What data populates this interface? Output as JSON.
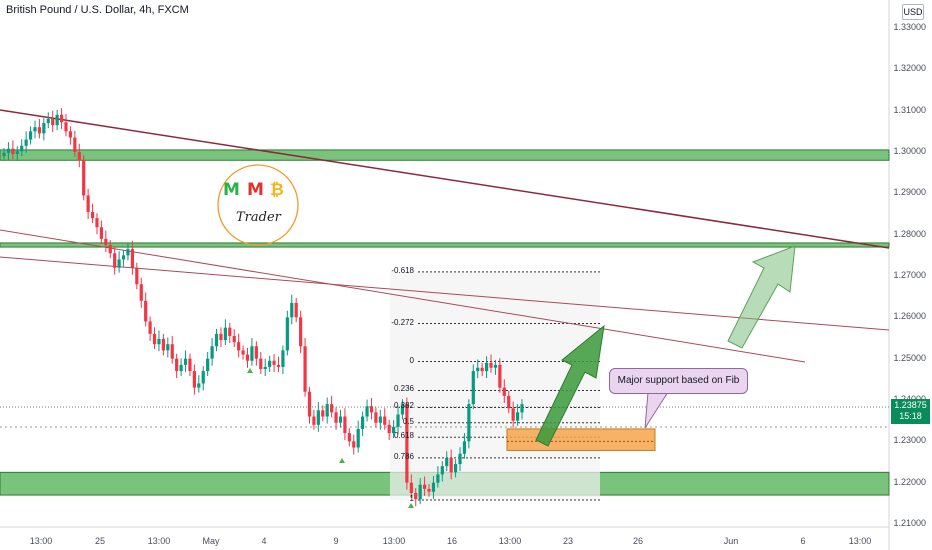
{
  "header": {
    "title": "British Pound / U.S. Dollar, 4h, FXCM",
    "currency": "USD"
  },
  "price": {
    "current": "1.23875",
    "countdown": "15:18"
  },
  "logo": {
    "m1": "M",
    "m2": "M",
    "coin": "₿",
    "sub": "Trader"
  },
  "callout": {
    "text": "Major support based on Fib"
  },
  "colors": {
    "up": "#089981",
    "down": "#f23645",
    "zone": "#4caf50",
    "trendline": "#8b2a3a",
    "arrow": "#3a9a3a"
  },
  "chart_data": {
    "type": "candlestick",
    "title": "British Pound / U.S. Dollar, 4h, FXCM",
    "ylim": [
      1.205,
      1.337
    ],
    "y_ticks": [
      "1.21000",
      "1.22000",
      "1.23000",
      "1.24000",
      "1.25000",
      "1.26000",
      "1.27000",
      "1.28000",
      "1.29000",
      "1.30000",
      "1.31000",
      "1.32000",
      "1.33000"
    ],
    "x_ticks": [
      "13:00",
      "25",
      "13:00",
      "May",
      "4",
      "9",
      "13:00",
      "16",
      "13:00",
      "23",
      "26",
      "Jun",
      "6",
      "13:00"
    ],
    "fib_levels": [
      {
        "label": "-0.618",
        "price": 1.271
      },
      {
        "label": "-0.272",
        "price": 1.2585
      },
      {
        "label": "0",
        "price": 1.2493
      },
      {
        "label": "0.236",
        "price": 1.2423
      },
      {
        "label": "0.382",
        "price": 1.2382
      },
      {
        "label": "0.5",
        "price": 1.2345
      },
      {
        "label": "0.618",
        "price": 1.231
      },
      {
        "label": "0.786",
        "price": 1.226
      },
      {
        "label": "1",
        "price": 1.2158
      }
    ],
    "support_zones": [
      [
        1.298,
        1.3005
      ],
      [
        1.277,
        1.278
      ],
      [
        1.217,
        1.2225
      ]
    ],
    "entry_zone": [
      1.2278,
      1.233
    ],
    "closes": [
      1.2998,
      1.3008,
      1.2995,
      1.3002,
      1.3015,
      1.303,
      1.305,
      1.306,
      1.3045,
      1.307,
      1.308,
      1.3065,
      1.309,
      1.3072,
      1.305,
      1.3035,
      1.3,
      1.298,
      1.2895,
      1.2855,
      1.284,
      1.2818,
      1.279,
      1.2775,
      1.2755,
      1.272,
      1.274,
      1.275,
      1.2765,
      1.272,
      1.268,
      1.264,
      1.259,
      1.256,
      1.2535,
      1.2548,
      1.252,
      1.2535,
      1.25,
      1.247,
      1.2485,
      1.25,
      1.247,
      1.243,
      1.244,
      1.247,
      1.25,
      1.253,
      1.256,
      1.2545,
      1.2575,
      1.2555,
      1.254,
      1.252,
      1.251,
      1.2495,
      1.253,
      1.25,
      1.2475,
      1.248,
      1.2495,
      1.2485,
      1.248,
      1.252,
      1.26,
      1.2635,
      1.26,
      1.253,
      1.242,
      1.236,
      1.234,
      1.2375,
      1.236,
      1.239,
      1.237,
      1.2345,
      1.236,
      1.232,
      1.23,
      1.2285,
      1.233,
      1.236,
      1.2385,
      1.237,
      1.2345,
      1.236,
      1.234,
      1.232,
      1.2335,
      1.2365,
      1.239,
      1.22,
      1.2175,
      1.216,
      1.2195,
      1.2185,
      1.2178,
      1.22,
      1.222,
      1.224,
      1.226,
      1.2225,
      1.2245,
      1.227,
      1.23,
      1.239,
      1.247,
      1.2478,
      1.247,
      1.249,
      1.2478,
      1.2485,
      1.243,
      1.241,
      1.238,
      1.235,
      1.237,
      1.239
    ]
  }
}
